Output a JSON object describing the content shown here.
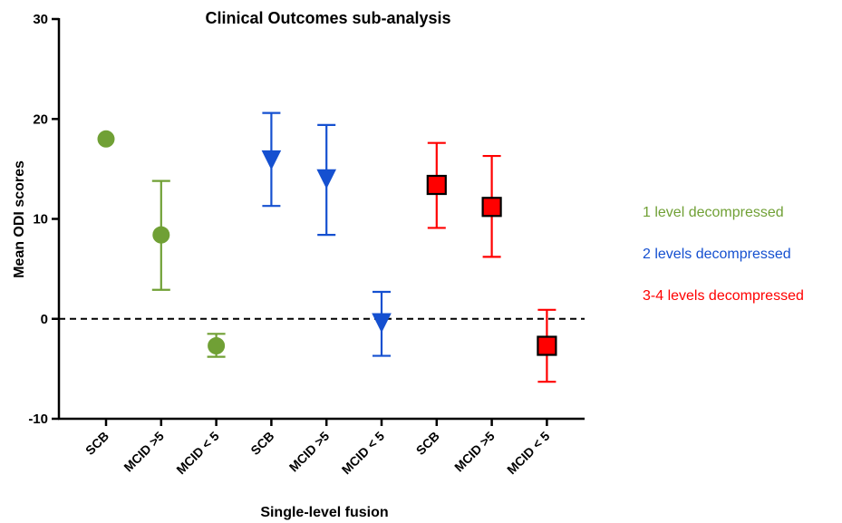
{
  "chart_data": {
    "type": "scatter",
    "title": "Clinical Outcomes sub-analysis",
    "xlabel": "Single-level fusion",
    "ylabel": "Mean  ODI scores",
    "ylim": [
      -10,
      30
    ],
    "yticks": [
      -10,
      0,
      10,
      20,
      30
    ],
    "reference_line": {
      "y": 0,
      "style": "dashed"
    },
    "categories": [
      "SCB",
      "MCID >5",
      "MCID < 5",
      "SCB",
      "MCID >5",
      "MCID < 5",
      "SCB",
      "MCID >5",
      "MCID < 5"
    ],
    "series": [
      {
        "name": "1 level decompressed",
        "color": "#70a035",
        "marker": "circle",
        "points": [
          {
            "category_index": 0,
            "mean": 18.0,
            "lower": null,
            "upper": null
          },
          {
            "category_index": 1,
            "mean": 8.4,
            "lower": 2.9,
            "upper": 13.8
          },
          {
            "category_index": 2,
            "mean": -2.7,
            "lower": -3.8,
            "upper": -1.5
          }
        ]
      },
      {
        "name": "2 levels decompressed",
        "color": "#1550d0",
        "marker": "triangle-down",
        "points": [
          {
            "category_index": 3,
            "mean": 16.0,
            "lower": 11.3,
            "upper": 20.6
          },
          {
            "category_index": 4,
            "mean": 14.1,
            "lower": 8.4,
            "upper": 19.4
          },
          {
            "category_index": 5,
            "mean": -0.3,
            "lower": -3.7,
            "upper": 2.7
          }
        ]
      },
      {
        "name": "3-4 levels decompressed",
        "color": "#ff0000",
        "marker": "square",
        "points": [
          {
            "category_index": 6,
            "mean": 13.4,
            "lower": 9.1,
            "upper": 17.6
          },
          {
            "category_index": 7,
            "mean": 11.2,
            "lower": 6.2,
            "upper": 16.3
          },
          {
            "category_index": 8,
            "mean": -2.7,
            "lower": -6.3,
            "upper": 0.9
          }
        ]
      }
    ],
    "legend": {
      "position": "right"
    }
  }
}
